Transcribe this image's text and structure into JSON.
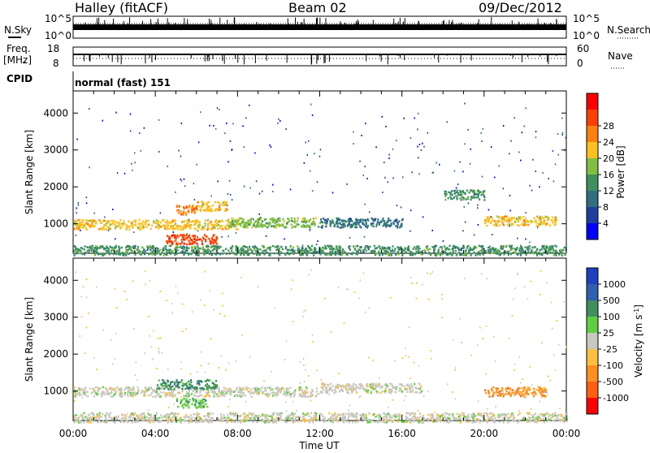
{
  "header": {
    "radar": "Halley (fitACF)",
    "beam": "Beam 02",
    "date": "09/Dec/2012"
  },
  "top_panels": {
    "nsky_label": "N.Sky",
    "nsearch_label": "N.Search",
    "nsky_ticks": [
      "10^5",
      "10^0"
    ],
    "nsearch_ticks": [
      "10^5",
      "10^0"
    ],
    "freq_label": "Freq.",
    "freq_unit": "[MHz]",
    "freq_ticks": [
      "18",
      "8"
    ],
    "nave_label": "Nave",
    "nave_ticks": [
      "60",
      "0"
    ],
    "cpid_label": "CPID",
    "cpid_value": "normal (fast) 151"
  },
  "chart_data": [
    {
      "type": "heatmap",
      "panel": "power",
      "ylabel": "Slant Range [km]",
      "y_ticks": [
        "1000",
        "2000",
        "3000",
        "4000"
      ],
      "ylim": [
        200,
        4600
      ],
      "xlim": [
        0,
        24
      ],
      "colorbar": {
        "label": "Power [dB]",
        "ticks": [
          "4",
          "8",
          "12",
          "16",
          "20",
          "24",
          "28"
        ],
        "colors": [
          "#0000ff",
          "#1f3f9f",
          "#2f6f7f",
          "#3f8f5f",
          "#7fbf3f",
          "#ffbf1f",
          "#ff7f0f",
          "#ff3f00",
          "#ff0000"
        ]
      },
      "features": [
        {
          "t_start": 0.0,
          "t_end": 24.0,
          "range_km": 300,
          "power_db": 10
        },
        {
          "t_start": 0.0,
          "t_end": 8.0,
          "range_km": 1000,
          "power_db": 18
        },
        {
          "t_start": 4.5,
          "t_end": 7.0,
          "range_km": 600,
          "power_db": 28
        },
        {
          "t_start": 5.0,
          "t_end": 6.0,
          "range_km": 1400,
          "power_db": 24
        },
        {
          "t_start": 6.0,
          "t_end": 7.5,
          "range_km": 1500,
          "power_db": 20
        },
        {
          "t_start": 7.5,
          "t_end": 12.0,
          "range_km": 1050,
          "power_db": 16
        },
        {
          "t_start": 12.0,
          "t_end": 16.0,
          "range_km": 1050,
          "power_db": 8
        },
        {
          "t_start": 18.0,
          "t_end": 20.0,
          "range_km": 1800,
          "power_db": 10
        },
        {
          "t_start": 20.0,
          "t_end": 23.5,
          "range_km": 1100,
          "power_db": 20
        }
      ]
    },
    {
      "type": "heatmap",
      "panel": "velocity",
      "ylabel": "Slant Range [km]",
      "xlabel": "Time UT",
      "x_ticks": [
        "00:00",
        "04:00",
        "08:00",
        "12:00",
        "16:00",
        "20:00",
        "00:00"
      ],
      "y_ticks": [
        "1000",
        "2000",
        "3000",
        "4000"
      ],
      "ylim": [
        200,
        4600
      ],
      "xlim": [
        0,
        24
      ],
      "colorbar": {
        "label": "Velocity [m s",
        "label_sup": "-1",
        "label_close": "]",
        "ticks": [
          "1000",
          "500",
          "100",
          "25",
          "-25",
          "-100",
          "-500",
          "-1000"
        ],
        "colors": [
          "#1f3fbf",
          "#2f5faf",
          "#3f8f5f",
          "#5fcf3f",
          "#c8c8c0",
          "#ffbf3f",
          "#ff8f1f",
          "#ff5f0f",
          "#ff0000"
        ]
      },
      "features": [
        {
          "t_start": 0.0,
          "t_end": 12.0,
          "range_km": 1000,
          "velocity": 0
        },
        {
          "t_start": 4.0,
          "t_end": 7.0,
          "range_km": 1200,
          "velocity": 100
        },
        {
          "t_start": 5.0,
          "t_end": 6.5,
          "range_km": 700,
          "velocity": 50
        },
        {
          "t_start": 12.0,
          "t_end": 17.0,
          "range_km": 1100,
          "velocity": 0
        },
        {
          "t_start": 20.0,
          "t_end": 23.0,
          "range_km": 1000,
          "velocity": -300
        },
        {
          "t_start": 0.0,
          "t_end": 24.0,
          "range_km": 300,
          "velocity": 0
        }
      ]
    }
  ]
}
